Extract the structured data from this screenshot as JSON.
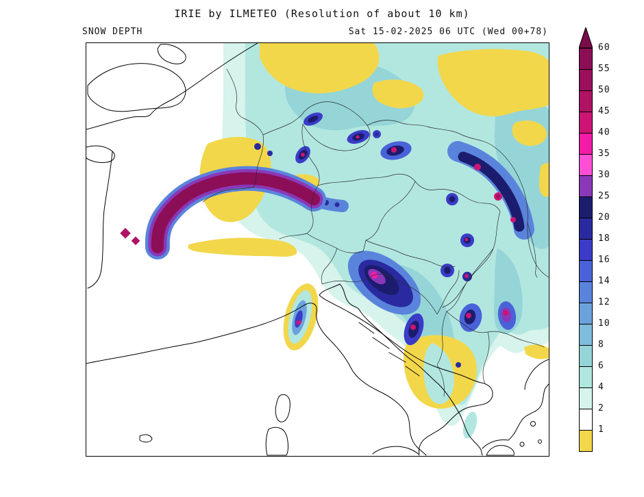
{
  "header": {
    "title": "IRIE by ILMETEO (Resolution of about 10 km)",
    "field_name": "SNOW DEPTH",
    "valid_time": "Sat 15-02-2025 06 UTC (Wed 00+78)"
  },
  "legend": {
    "arrow_color": "#7A0C4A",
    "bands": [
      {
        "tick": "60",
        "color": "#8C0E56"
      },
      {
        "tick": "55",
        "color": "#9A105C"
      },
      {
        "tick": "50",
        "color": "#B01264"
      },
      {
        "tick": "45",
        "color": "#CC1474"
      },
      {
        "tick": "40",
        "color": "#F31CA8"
      },
      {
        "tick": "35",
        "color": "#FF50D5"
      },
      {
        "tick": "30",
        "color": "#8A38B8"
      },
      {
        "tick": "25",
        "color": "#1C1C6E"
      },
      {
        "tick": "20",
        "color": "#2A2AA0"
      },
      {
        "tick": "18",
        "color": "#3A3CC8"
      },
      {
        "tick": "16",
        "color": "#4A62D8"
      },
      {
        "tick": "14",
        "color": "#5A84DC"
      },
      {
        "tick": "12",
        "color": "#6CA2DC"
      },
      {
        "tick": "10",
        "color": "#80BCDC"
      },
      {
        "tick": "8",
        "color": "#95D5D8"
      },
      {
        "tick": "6",
        "color": "#B2E7E0"
      },
      {
        "tick": "4",
        "color": "#D6F3EC"
      },
      {
        "tick": "2",
        "color": "#FFFFFF"
      },
      {
        "tick": "1",
        "color": "#F2D74B"
      }
    ]
  }
}
